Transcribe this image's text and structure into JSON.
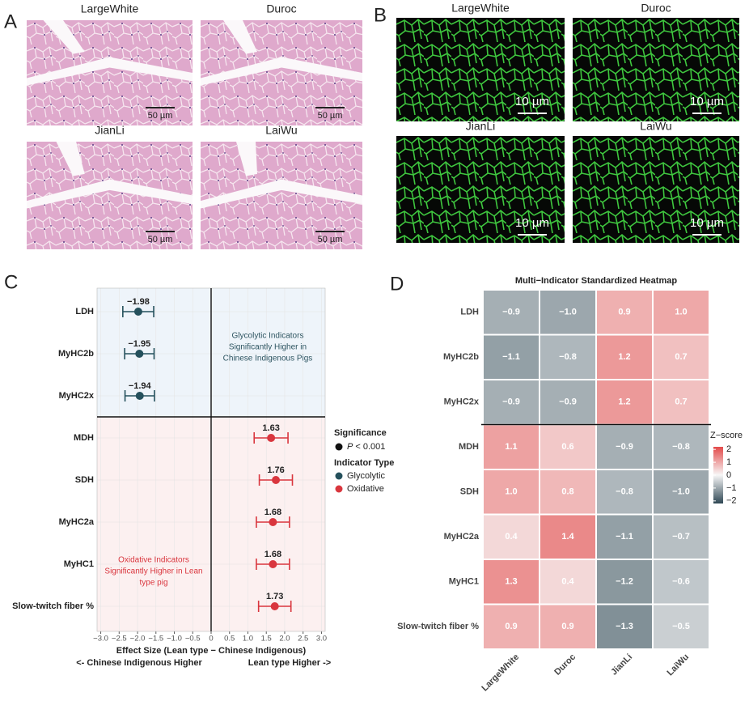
{
  "panel_a": {
    "label": "A",
    "images": [
      {
        "title": "LargeWhite",
        "scale_bar": "50 µm"
      },
      {
        "title": "Duroc",
        "scale_bar": "50 µm"
      },
      {
        "title": "JianLi",
        "scale_bar": "50 µm"
      },
      {
        "title": "LaiWu",
        "scale_bar": "50 µm"
      }
    ]
  },
  "panel_b": {
    "label": "B",
    "images": [
      {
        "title": "LargeWhite",
        "scale_bar": "10 µm"
      },
      {
        "title": "Duroc",
        "scale_bar": "10 µm"
      },
      {
        "title": "JianLi",
        "scale_bar": "10 µm"
      },
      {
        "title": "LaiWu",
        "scale_bar": "10 µm"
      }
    ]
  },
  "chart_data": [
    {
      "type": "forest",
      "panel_label": "C",
      "categories": [
        "LDH",
        "MyHC2b",
        "MyHC2x",
        "MDH",
        "SDH",
        "MyHC2a",
        "MyHC1",
        "Slow-twitch fiber %"
      ],
      "series": [
        {
          "name": "Glycolytic",
          "color": "#24505c",
          "values": [
            -1.98,
            -1.95,
            -1.94,
            null,
            null,
            null,
            null,
            null
          ],
          "errors": [
            0.42,
            0.4,
            0.4,
            null,
            null,
            null,
            null,
            null
          ],
          "value_labels": [
            "−1.98",
            "−1.95",
            "−1.94",
            null,
            null,
            null,
            null,
            null
          ]
        },
        {
          "name": "Oxidative",
          "color": "#d9363e",
          "values": [
            null,
            null,
            null,
            1.63,
            1.76,
            1.68,
            1.68,
            1.73
          ],
          "errors": [
            null,
            null,
            null,
            0.46,
            0.45,
            0.45,
            0.45,
            0.44
          ],
          "value_labels": [
            null,
            null,
            null,
            "1.63",
            "1.76",
            "1.68",
            "1.68",
            "1.73"
          ]
        }
      ],
      "xlim": [
        -3.1,
        3.1
      ],
      "xticks": [
        {
          "value": -3,
          "label": "−3.0"
        },
        {
          "value": -2.5,
          "label": "−2.5"
        },
        {
          "value": -2,
          "label": "−2.0"
        },
        {
          "value": -1.5,
          "label": "−1.5"
        },
        {
          "value": -1,
          "label": "−1.0"
        },
        {
          "value": -0.5,
          "label": "−0.5"
        },
        0,
        0.5,
        {
          "value": 1,
          "label": "1.0"
        },
        1.5,
        {
          "value": 2,
          "label": "2.0"
        },
        2.5,
        {
          "value": 3,
          "label": "3.0"
        }
      ],
      "vline": 0,
      "region_colors": [
        "#eef4fa",
        "#fcf0f0"
      ],
      "xlabel": "Effect Size (Lean type − Chinese Indigenous)",
      "xlabel_left": "<- Chinese Indigenous Higher",
      "xlabel_right": "Lean type Higher ->",
      "annotations": [
        {
          "text": [
            "Glycolytic Indicators",
            "Significantly Higher in",
            "Chinese Indigenous Pigs"
          ],
          "color": "#2d5460"
        },
        {
          "text": [
            "Oxidative Indicators",
            "Significantly Higher in Lean",
            "type pig"
          ],
          "color": "#d9363e"
        }
      ],
      "legend": {
        "significance_title": "Significance",
        "significance_symbol": "P",
        "significance_text": "< 0.001",
        "type_title": "Indicator Type"
      }
    },
    {
      "type": "heatmap",
      "panel_label": "D",
      "title": "Multi−Indicator Standardized Heatmap",
      "rows": [
        "LDH",
        "MyHC2b",
        "MyHC2x",
        "MDH",
        "SDH",
        "MyHC2a",
        "MyHC1",
        "Slow-twitch fiber %"
      ],
      "columns": [
        "LargeWhite",
        "Duroc",
        "JianLi",
        "LaiWu"
      ],
      "values": [
        [
          -0.9,
          -1.0,
          0.9,
          1.0
        ],
        [
          -1.1,
          -0.8,
          1.2,
          0.7
        ],
        [
          -0.9,
          -0.9,
          1.2,
          0.7
        ],
        [
          1.1,
          0.6,
          -0.9,
          -0.8
        ],
        [
          1.0,
          0.8,
          -0.8,
          -1.0
        ],
        [
          0.4,
          1.4,
          -1.1,
          -0.7
        ],
        [
          1.3,
          0.4,
          -1.2,
          -0.6
        ],
        [
          0.9,
          0.9,
          -1.3,
          -0.5
        ]
      ],
      "value_labels": [
        [
          "−0.9",
          "−1.0",
          "0.9",
          "1.0"
        ],
        [
          "−1.1",
          "−0.8",
          "1.2",
          "0.7"
        ],
        [
          "−0.9",
          "−0.9",
          "1.2",
          "0.7"
        ],
        [
          "1.1",
          "0.6",
          "−0.9",
          "−0.8"
        ],
        [
          "1.0",
          "0.8",
          "−0.8",
          "−1.0"
        ],
        [
          "0.4",
          "1.4",
          "−1.1",
          "−0.7"
        ],
        [
          "1.3",
          "0.4",
          "−1.2",
          "−0.6"
        ],
        [
          "0.9",
          "0.9",
          "−1.3",
          "−0.5"
        ]
      ],
      "colorbar": {
        "title": "Z−score",
        "lim": [
          -2.2,
          2.2
        ],
        "ticks": [
          2,
          1,
          0,
          {
            "value": -1,
            "label": "−1"
          },
          {
            "value": -2,
            "label": "−2"
          }
        ]
      },
      "colors": {
        "low": "#2f4854",
        "mid": "#f7f7f7",
        "high": "#e34a4a"
      }
    }
  ]
}
